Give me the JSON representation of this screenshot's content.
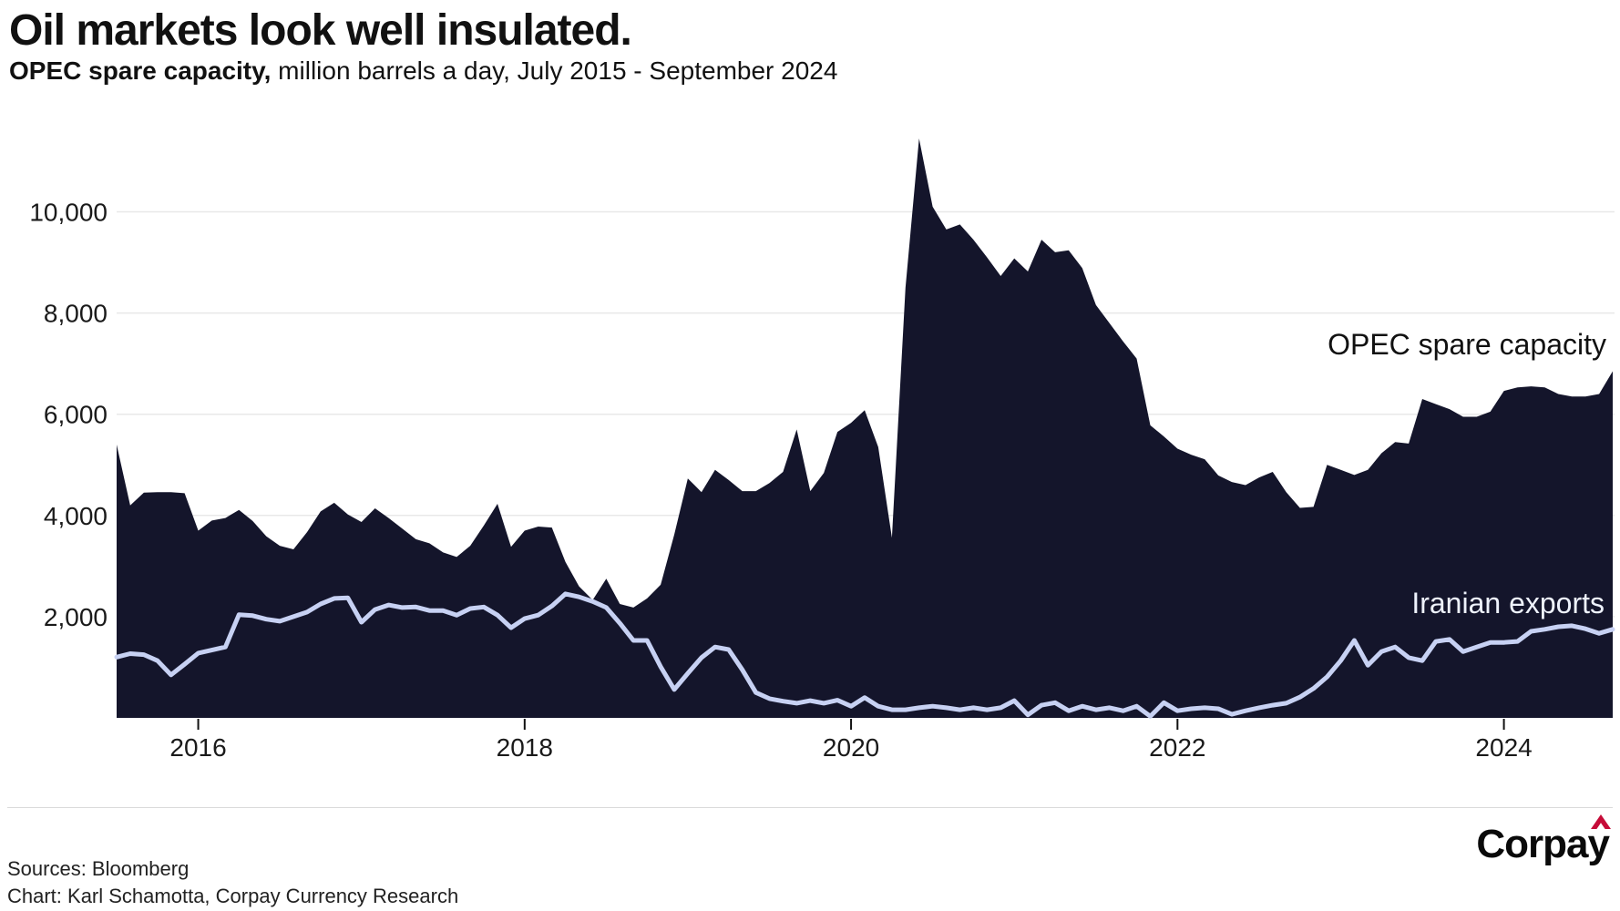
{
  "header": {
    "title": "Oil markets look well insulated.",
    "subtitle_bold": "OPEC spare capacity,",
    "subtitle_rest": " million barrels a day, July 2015 - September 2024"
  },
  "chart_data": {
    "type": "area",
    "title": "Oil markets look well insulated.",
    "subtitle": "OPEC spare capacity, million barrels a day, July 2015 - September 2024",
    "frequency": "monthly",
    "x_start": "2015-07",
    "x_end": "2024-09",
    "ylim": [
      0,
      11800
    ],
    "grid": "horizontal",
    "background_color": "#FFFFFF",
    "gridline_color": "#E8E8E8",
    "y_ticks": [
      {
        "value": 2000,
        "label": "2,000"
      },
      {
        "value": 4000,
        "label": "4,000"
      },
      {
        "value": 6000,
        "label": "6,000"
      },
      {
        "value": 8000,
        "label": "8,000"
      },
      {
        "value": 10000,
        "label": "10,000"
      }
    ],
    "x_ticks": [
      {
        "label": "2016",
        "month_index": 6
      },
      {
        "label": "2018",
        "month_index": 30
      },
      {
        "label": "2020",
        "month_index": 54
      },
      {
        "label": "2022",
        "month_index": 78
      },
      {
        "label": "2024",
        "month_index": 102
      }
    ],
    "series": [
      {
        "name": "OPEC spare capacity",
        "type": "area",
        "color": "#14152B",
        "label_color": "#111111",
        "values": [
          5400,
          4200,
          4450,
          4460,
          4460,
          4440,
          3700,
          3900,
          3950,
          4110,
          3890,
          3590,
          3400,
          3330,
          3670,
          4080,
          4250,
          4020,
          3870,
          4140,
          3950,
          3740,
          3530,
          3450,
          3270,
          3180,
          3400,
          3800,
          4230,
          3380,
          3700,
          3780,
          3760,
          3080,
          2600,
          2330,
          2750,
          2250,
          2180,
          2360,
          2630,
          3620,
          4730,
          4460,
          4900,
          4700,
          4480,
          4480,
          4640,
          4860,
          5700,
          4480,
          4840,
          5650,
          5830,
          6080,
          5350,
          3560,
          8500,
          11450,
          10100,
          9650,
          9750,
          9450,
          9100,
          8730,
          9080,
          8820,
          9450,
          9200,
          9240,
          8890,
          8160,
          7800,
          7440,
          7100,
          5780,
          5560,
          5320,
          5200,
          5110,
          4790,
          4660,
          4600,
          4750,
          4860,
          4460,
          4150,
          4170,
          5000,
          4900,
          4800,
          4900,
          5230,
          5450,
          5420,
          6300,
          6200,
          6100,
          5950,
          5950,
          6050,
          6460,
          6530,
          6550,
          6530,
          6400,
          6350,
          6350,
          6400,
          6850
        ]
      },
      {
        "name": "Iranian exports",
        "type": "line",
        "color": "#C7D1F3",
        "label_color": "#EEF2FC",
        "values": [
          1200,
          1270,
          1250,
          1130,
          850,
          1060,
          1280,
          1340,
          1400,
          2040,
          2020,
          1950,
          1910,
          2000,
          2090,
          2250,
          2360,
          2370,
          1890,
          2140,
          2230,
          2180,
          2190,
          2120,
          2120,
          2030,
          2160,
          2190,
          2030,
          1780,
          1960,
          2030,
          2210,
          2450,
          2390,
          2300,
          2180,
          1870,
          1530,
          1530,
          1010,
          560,
          880,
          1190,
          1400,
          1350,
          950,
          500,
          380,
          330,
          290,
          340,
          290,
          350,
          230,
          400,
          230,
          160,
          160,
          200,
          230,
          200,
          160,
          200,
          160,
          200,
          340,
          60,
          250,
          300,
          140,
          230,
          160,
          200,
          140,
          230,
          30,
          300,
          140,
          180,
          200,
          180,
          70,
          140,
          200,
          250,
          290,
          410,
          580,
          810,
          1130,
          1530,
          1040,
          1310,
          1400,
          1190,
          1130,
          1510,
          1550,
          1310,
          1400,
          1490,
          1490,
          1510,
          1710,
          1750,
          1800,
          1820,
          1760,
          1670,
          1750
        ]
      }
    ],
    "axis_text_color": "#1a1a1a"
  },
  "footer": {
    "sources": "Sources: Bloomberg",
    "credit": "Chart: Karl Schamotta, Corpay Currency Research",
    "logo_text": "Corpay",
    "logo_caret_color": "#C60C39"
  }
}
